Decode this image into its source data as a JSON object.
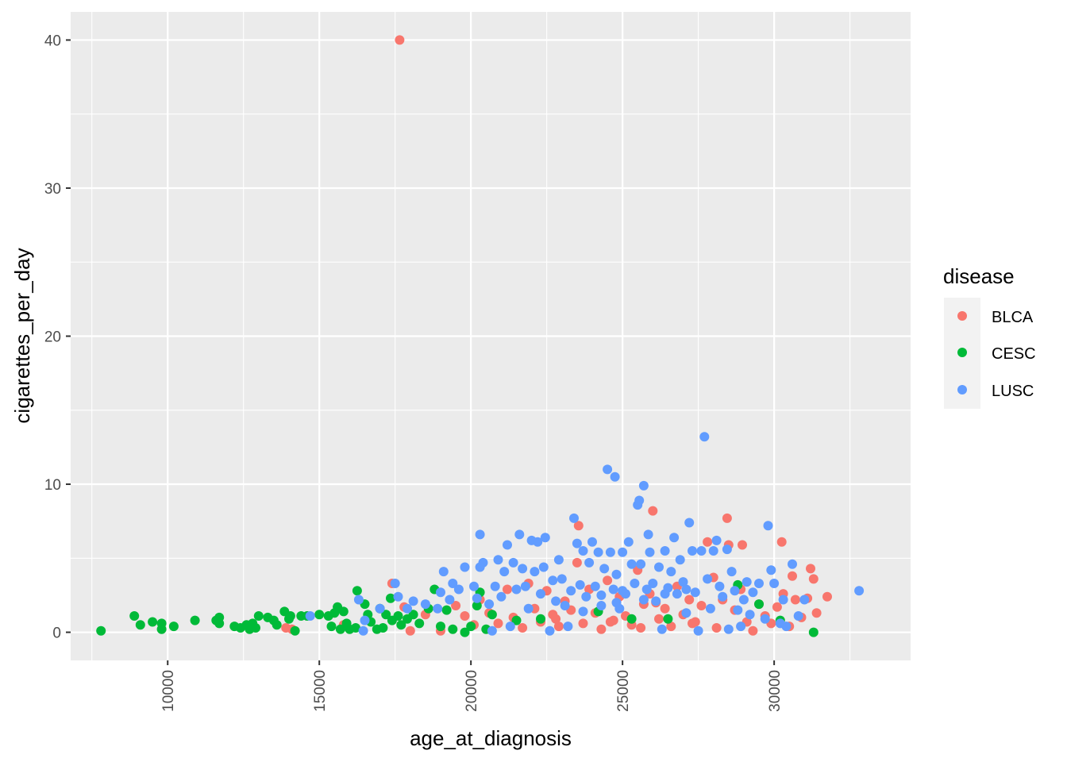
{
  "chart_data": {
    "type": "scatter",
    "xlabel": "age_at_diagnosis",
    "ylabel": "cigarettes_per_day",
    "xlim": [
      6800,
      34500
    ],
    "ylim": [
      -1.9,
      41.9
    ],
    "x_ticks": [
      10000,
      15000,
      20000,
      25000,
      30000
    ],
    "x_tick_labels": [
      "10000",
      "15000",
      "20000",
      "25000",
      "30000"
    ],
    "y_ticks": [
      0,
      10,
      20,
      30,
      40
    ],
    "y_tick_labels": [
      "0",
      "10",
      "20",
      "30",
      "40"
    ],
    "background": "gray panel with white grid",
    "grid": true,
    "legend": {
      "title": "disease",
      "placement": "right",
      "entries": [
        "BLCA",
        "CESC",
        "LUSC"
      ]
    },
    "series": [
      {
        "name": "BLCA",
        "color": "#F8766D",
        "points": [
          [
            17650,
            40.0
          ],
          [
            17400,
            3.3
          ],
          [
            13900,
            0.3
          ],
          [
            14100,
            0.2
          ],
          [
            15800,
            0.5
          ],
          [
            17800,
            1.7
          ],
          [
            18000,
            0.1
          ],
          [
            18500,
            1.2
          ],
          [
            19000,
            0.1
          ],
          [
            19500,
            1.8
          ],
          [
            19800,
            1.1
          ],
          [
            20100,
            0.5
          ],
          [
            20300,
            2.2
          ],
          [
            20600,
            1.3
          ],
          [
            20900,
            0.6
          ],
          [
            21200,
            2.9
          ],
          [
            21400,
            1.0
          ],
          [
            21700,
            0.3
          ],
          [
            21900,
            3.3
          ],
          [
            22100,
            1.6
          ],
          [
            22300,
            0.7
          ],
          [
            22500,
            2.8
          ],
          [
            22700,
            1.2
          ],
          [
            22900,
            0.4
          ],
          [
            23100,
            2.1
          ],
          [
            23300,
            1.5
          ],
          [
            23500,
            4.7
          ],
          [
            23550,
            7.2
          ],
          [
            23700,
            0.6
          ],
          [
            23900,
            2.9
          ],
          [
            24100,
            1.3
          ],
          [
            24300,
            0.2
          ],
          [
            24500,
            3.5
          ],
          [
            24700,
            0.8
          ],
          [
            24900,
            2.4
          ],
          [
            25100,
            1.1
          ],
          [
            25300,
            0.5
          ],
          [
            25500,
            4.2
          ],
          [
            25600,
            0.3
          ],
          [
            25700,
            1.9
          ],
          [
            25900,
            2.6
          ],
          [
            26000,
            8.2
          ],
          [
            26200,
            0.9
          ],
          [
            26400,
            1.6
          ],
          [
            26600,
            0.4
          ],
          [
            26800,
            3.1
          ],
          [
            27000,
            1.2
          ],
          [
            27200,
            2.2
          ],
          [
            27400,
            0.7
          ],
          [
            27600,
            1.8
          ],
          [
            27800,
            6.1
          ],
          [
            28000,
            3.7
          ],
          [
            28100,
            0.3
          ],
          [
            28300,
            2.2
          ],
          [
            28450,
            7.7
          ],
          [
            28500,
            5.9
          ],
          [
            28700,
            1.5
          ],
          [
            28900,
            2.9
          ],
          [
            28950,
            5.9
          ],
          [
            29100,
            0.7
          ],
          [
            29300,
            0.1
          ],
          [
            29500,
            1.9
          ],
          [
            29700,
            1.1
          ],
          [
            29900,
            0.6
          ],
          [
            30100,
            1.7
          ],
          [
            30250,
            6.1
          ],
          [
            30300,
            2.6
          ],
          [
            30500,
            0.4
          ],
          [
            30600,
            3.8
          ],
          [
            30700,
            2.2
          ],
          [
            30900,
            1.0
          ],
          [
            31100,
            2.3
          ],
          [
            31200,
            4.3
          ],
          [
            31300,
            3.6
          ],
          [
            31400,
            1.3
          ],
          [
            31750,
            2.4
          ],
          [
            24600,
            0.7
          ],
          [
            26100,
            2.0
          ],
          [
            27300,
            0.6
          ],
          [
            22800,
            0.9
          ]
        ]
      },
      {
        "name": "CESC",
        "color": "#00BA38",
        "points": [
          [
            7800,
            0.1
          ],
          [
            8900,
            1.1
          ],
          [
            9100,
            0.5
          ],
          [
            9500,
            0.7
          ],
          [
            9800,
            0.6
          ],
          [
            9800,
            0.2
          ],
          [
            10200,
            0.4
          ],
          [
            10900,
            0.8
          ],
          [
            11600,
            0.8
          ],
          [
            11700,
            1.0
          ],
          [
            11700,
            0.6
          ],
          [
            12200,
            0.4
          ],
          [
            12400,
            0.3
          ],
          [
            12600,
            0.5
          ],
          [
            12700,
            0.2
          ],
          [
            12800,
            0.6
          ],
          [
            12900,
            0.3
          ],
          [
            13000,
            1.1
          ],
          [
            13300,
            1.0
          ],
          [
            13500,
            0.8
          ],
          [
            13600,
            0.5
          ],
          [
            13850,
            1.4
          ],
          [
            14000,
            0.9
          ],
          [
            14050,
            1.1
          ],
          [
            14200,
            0.1
          ],
          [
            14400,
            1.1
          ],
          [
            14600,
            1.1
          ],
          [
            15000,
            1.2
          ],
          [
            15300,
            1.1
          ],
          [
            15400,
            0.4
          ],
          [
            15500,
            1.3
          ],
          [
            15600,
            1.7
          ],
          [
            15700,
            0.2
          ],
          [
            15800,
            1.4
          ],
          [
            15900,
            0.6
          ],
          [
            16000,
            0.2
          ],
          [
            16200,
            0.3
          ],
          [
            16250,
            2.8
          ],
          [
            16500,
            1.9
          ],
          [
            16600,
            1.2
          ],
          [
            16700,
            0.7
          ],
          [
            16900,
            0.2
          ],
          [
            17000,
            1.6
          ],
          [
            17100,
            0.3
          ],
          [
            17200,
            1.2
          ],
          [
            17350,
            2.3
          ],
          [
            17400,
            0.8
          ],
          [
            17600,
            1.1
          ],
          [
            17700,
            0.5
          ],
          [
            17900,
            0.9
          ],
          [
            18100,
            1.2
          ],
          [
            18300,
            0.6
          ],
          [
            18600,
            1.6
          ],
          [
            18800,
            2.9
          ],
          [
            19000,
            0.4
          ],
          [
            19200,
            1.5
          ],
          [
            19400,
            0.2
          ],
          [
            19800,
            0.0
          ],
          [
            20000,
            0.4
          ],
          [
            20200,
            1.8
          ],
          [
            20300,
            2.7
          ],
          [
            20500,
            0.2
          ],
          [
            20700,
            1.2
          ],
          [
            21500,
            0.8
          ],
          [
            22300,
            0.9
          ],
          [
            24200,
            1.4
          ],
          [
            25300,
            0.9
          ],
          [
            26500,
            0.9
          ],
          [
            28800,
            3.2
          ],
          [
            29500,
            1.9
          ],
          [
            31300,
            0.0
          ],
          [
            30200,
            0.8
          ]
        ]
      },
      {
        "name": "LUSC",
        "color": "#619CFF",
        "points": [
          [
            14700,
            1.1
          ],
          [
            16300,
            2.2
          ],
          [
            16450,
            0.1
          ],
          [
            16500,
            0.8
          ],
          [
            17000,
            1.6
          ],
          [
            17500,
            3.3
          ],
          [
            17600,
            2.4
          ],
          [
            17900,
            1.6
          ],
          [
            18100,
            2.1
          ],
          [
            18500,
            1.9
          ],
          [
            18900,
            1.6
          ],
          [
            19000,
            2.7
          ],
          [
            19100,
            4.1
          ],
          [
            19300,
            2.2
          ],
          [
            19400,
            3.3
          ],
          [
            19600,
            2.9
          ],
          [
            19800,
            4.4
          ],
          [
            20100,
            3.1
          ],
          [
            20200,
            2.3
          ],
          [
            20300,
            4.4
          ],
          [
            20300,
            6.6
          ],
          [
            20400,
            4.7
          ],
          [
            20600,
            1.9
          ],
          [
            20700,
            0.1
          ],
          [
            20800,
            3.1
          ],
          [
            20900,
            4.9
          ],
          [
            21000,
            2.4
          ],
          [
            21100,
            4.1
          ],
          [
            21200,
            5.9
          ],
          [
            21300,
            0.4
          ],
          [
            21400,
            4.7
          ],
          [
            21500,
            2.9
          ],
          [
            21600,
            6.6
          ],
          [
            21700,
            4.3
          ],
          [
            21800,
            3.1
          ],
          [
            21900,
            1.6
          ],
          [
            22000,
            6.2
          ],
          [
            22100,
            4.1
          ],
          [
            22200,
            6.1
          ],
          [
            22300,
            2.6
          ],
          [
            22400,
            4.4
          ],
          [
            22450,
            6.4
          ],
          [
            22600,
            0.1
          ],
          [
            22700,
            3.5
          ],
          [
            22800,
            2.1
          ],
          [
            22900,
            4.9
          ],
          [
            23000,
            3.6
          ],
          [
            23100,
            1.8
          ],
          [
            23200,
            0.4
          ],
          [
            23300,
            2.8
          ],
          [
            23400,
            7.7
          ],
          [
            23500,
            6.0
          ],
          [
            23600,
            3.2
          ],
          [
            23700,
            5.5
          ],
          [
            23800,
            2.4
          ],
          [
            23900,
            4.7
          ],
          [
            24000,
            6.1
          ],
          [
            24100,
            3.1
          ],
          [
            24200,
            5.4
          ],
          [
            24300,
            1.8
          ],
          [
            24400,
            4.3
          ],
          [
            24500,
            11.0
          ],
          [
            24600,
            5.4
          ],
          [
            24700,
            2.9
          ],
          [
            24750,
            10.5
          ],
          [
            24800,
            3.9
          ],
          [
            24900,
            1.6
          ],
          [
            25000,
            5.4
          ],
          [
            25100,
            2.6
          ],
          [
            25200,
            6.1
          ],
          [
            25300,
            4.6
          ],
          [
            25400,
            3.3
          ],
          [
            25500,
            8.6
          ],
          [
            25550,
            8.9
          ],
          [
            25600,
            4.6
          ],
          [
            25700,
            9.9
          ],
          [
            25800,
            2.9
          ],
          [
            25850,
            6.6
          ],
          [
            25900,
            5.4
          ],
          [
            26000,
            3.3
          ],
          [
            26100,
            2.1
          ],
          [
            26200,
            4.4
          ],
          [
            26300,
            0.2
          ],
          [
            26400,
            5.5
          ],
          [
            26500,
            3.0
          ],
          [
            26600,
            4.1
          ],
          [
            26700,
            6.4
          ],
          [
            26800,
            2.6
          ],
          [
            26900,
            4.9
          ],
          [
            27000,
            3.4
          ],
          [
            27100,
            1.3
          ],
          [
            27200,
            7.4
          ],
          [
            27300,
            5.5
          ],
          [
            27400,
            2.7
          ],
          [
            27500,
            0.1
          ],
          [
            27600,
            5.5
          ],
          [
            27700,
            13.2
          ],
          [
            27800,
            3.6
          ],
          [
            27900,
            1.6
          ],
          [
            28000,
            5.5
          ],
          [
            28100,
            6.2
          ],
          [
            28200,
            3.1
          ],
          [
            28300,
            2.4
          ],
          [
            28450,
            5.6
          ],
          [
            28500,
            0.2
          ],
          [
            28600,
            4.1
          ],
          [
            28700,
            2.8
          ],
          [
            28800,
            1.5
          ],
          [
            28900,
            0.4
          ],
          [
            29000,
            2.2
          ],
          [
            29100,
            3.4
          ],
          [
            29200,
            1.2
          ],
          [
            29300,
            2.7
          ],
          [
            29500,
            3.3
          ],
          [
            29700,
            0.9
          ],
          [
            29800,
            7.2
          ],
          [
            29900,
            4.2
          ],
          [
            30000,
            3.3
          ],
          [
            30200,
            0.6
          ],
          [
            30300,
            2.2
          ],
          [
            30400,
            0.4
          ],
          [
            30600,
            4.6
          ],
          [
            30800,
            1.1
          ],
          [
            31000,
            2.2
          ],
          [
            32800,
            2.8
          ],
          [
            25000,
            2.8
          ],
          [
            24300,
            2.5
          ],
          [
            25700,
            2.2
          ],
          [
            26400,
            2.6
          ],
          [
            24800,
            2.0
          ],
          [
            23700,
            1.4
          ],
          [
            27100,
            2.9
          ]
        ]
      }
    ]
  }
}
